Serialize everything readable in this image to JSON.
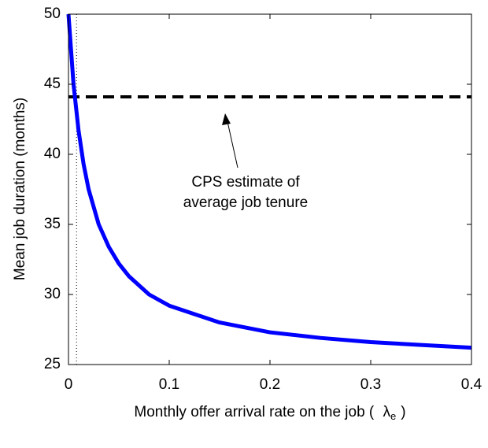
{
  "chart_data": {
    "type": "line",
    "xlabel": "Monthly offer arrival rate on the job (",
    "xlabel_symbol": "λ",
    "xlabel_subscript": "e",
    "xlabel_end": ")",
    "ylabel": "Mean job duration (months)",
    "x": [
      0,
      0.005,
      0.01,
      0.015,
      0.02,
      0.03,
      0.04,
      0.05,
      0.06,
      0.08,
      0.1,
      0.15,
      0.2,
      0.25,
      0.3,
      0.35,
      0.4
    ],
    "series": [
      {
        "color": "#0000ff",
        "values": [
          50,
          45.0,
          41.7,
          39.3,
          37.5,
          35.0,
          33.4,
          32.2,
          31.3,
          30.0,
          29.2,
          28.0,
          27.3,
          26.9,
          26.6,
          26.4,
          26.2
        ]
      }
    ],
    "hline": {
      "value": 44.1,
      "color": "#000000"
    },
    "vline": {
      "value": 0.008,
      "color": "#000000"
    },
    "annotation": [
      "CPS estimate of",
      "average job tenure"
    ],
    "xlim": [
      0,
      0.4
    ],
    "xticks": [
      0,
      0.1,
      0.2,
      0.3,
      0.4
    ],
    "ylim": [
      25,
      50
    ],
    "yticks": [
      25,
      30,
      35,
      40,
      45,
      50
    ]
  }
}
